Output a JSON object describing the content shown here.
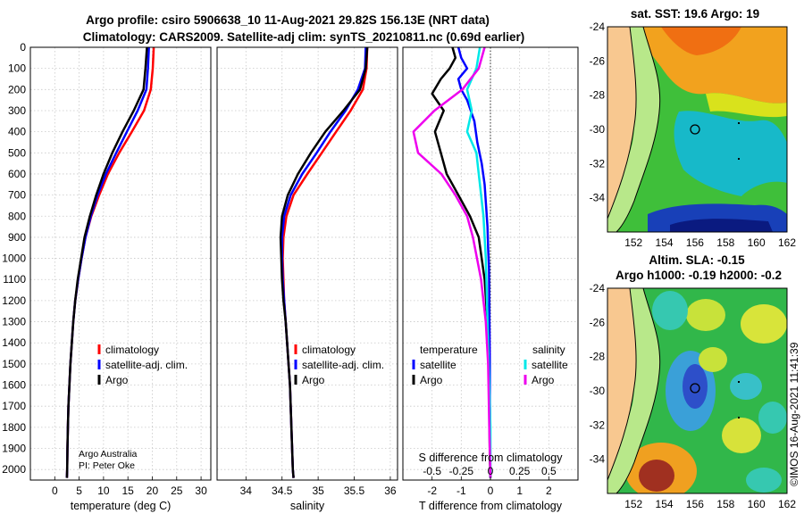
{
  "title_line1": "Argo profile: csiro 5906638_10 11-Aug-2021 29.82S 156.13E (NRT data)",
  "title_line2": "Climatology: CARS2009. Satellite-adj clim: synTS_20210811.nc (0.69d earlier)",
  "credit_line1": "Argo Australia",
  "credit_line2": "PI: Peter Oke",
  "timestamp": "©IMOS 16-Aug-2021 11:41:39",
  "colors": {
    "climatology": "#ff0000",
    "satellite": "#0000ff",
    "argo": "#000000",
    "sal_sat": "#00e8e8",
    "sal_argo": "#ee00ee"
  },
  "depth_ticks": [
    0,
    100,
    200,
    300,
    400,
    500,
    600,
    700,
    800,
    900,
    1000,
    1100,
    1200,
    1300,
    1400,
    1500,
    1600,
    1700,
    1800,
    1900,
    2000
  ],
  "legend": {
    "climatology": "climatology",
    "satellite": "satellite-adj. clim.",
    "argo": "Argo"
  },
  "diff_legend": {
    "temperature": "temperature",
    "salinity": "salinity",
    "satellite": "satellite",
    "argo": "Argo"
  },
  "maps": {
    "sst_title": "sat. SST: 19.6 Argo: 19",
    "sla_title1": "Altim. SLA: -0.15",
    "sla_title2": "Argo h1000: -0.19 h2000: -0.2",
    "lat_ticks": [
      "-24",
      "-26",
      "-28",
      "-30",
      "-32",
      "-34"
    ],
    "lon_ticks": [
      "152",
      "154",
      "156",
      "158",
      "160",
      "162"
    ]
  },
  "chart_data": [
    {
      "type": "line",
      "title": "",
      "xlabel": "temperature (deg C)",
      "ylabel": "",
      "xlim": [
        -5,
        32
      ],
      "ylim": [
        2050,
        0
      ],
      "xticks": [
        0,
        5,
        10,
        15,
        20,
        25,
        30
      ],
      "series": [
        {
          "name": "climatology",
          "x": [
            20.3,
            20.1,
            19.7,
            18.3,
            15.8,
            13.2,
            10.9,
            9.1,
            7.5,
            6.3,
            5.5,
            4.8,
            4.2,
            3.8,
            3.5,
            3.2,
            3.0,
            2.8,
            2.7,
            2.6,
            2.55,
            2.5
          ],
          "y": [
            0,
            100,
            200,
            300,
            400,
            500,
            600,
            700,
            800,
            900,
            1000,
            1100,
            1200,
            1300,
            1400,
            1500,
            1600,
            1700,
            1800,
            1900,
            2000,
            2040
          ]
        },
        {
          "name": "satellite-adj. clim.",
          "x": [
            19.3,
            19.1,
            18.8,
            17.0,
            14.8,
            12.6,
            10.5,
            8.8,
            7.4,
            6.3,
            5.5,
            4.8,
            4.2,
            3.8,
            3.5,
            3.2,
            3.0,
            2.8,
            2.7,
            2.6,
            2.55,
            2.5
          ],
          "y": [
            0,
            100,
            200,
            300,
            400,
            500,
            600,
            700,
            800,
            900,
            1000,
            1100,
            1200,
            1300,
            1400,
            1500,
            1600,
            1700,
            1800,
            1900,
            2000,
            2040
          ]
        },
        {
          "name": "Argo",
          "x": [
            18.9,
            18.6,
            18.2,
            16.2,
            13.9,
            11.8,
            10.0,
            8.5,
            7.2,
            6.1,
            5.4,
            4.7,
            4.2,
            3.8,
            3.5,
            3.2,
            3.0,
            2.8,
            2.7,
            2.6,
            2.55,
            2.5
          ],
          "y": [
            0,
            100,
            200,
            300,
            400,
            500,
            600,
            700,
            800,
            900,
            1000,
            1100,
            1200,
            1300,
            1400,
            1500,
            1600,
            1700,
            1800,
            1900,
            2000,
            2040
          ]
        }
      ]
    },
    {
      "type": "line",
      "title": "",
      "xlabel": "salinity",
      "ylabel": "",
      "xlim": [
        33.6,
        36.1
      ],
      "ylim": [
        2050,
        0
      ],
      "xticks": [
        34,
        34.5,
        35,
        35.5,
        36
      ],
      "xticklabels": [
        "34",
        "34.5",
        "35",
        "35.5",
        "36"
      ],
      "series": [
        {
          "name": "climatology",
          "x": [
            35.68,
            35.67,
            35.62,
            35.45,
            35.25,
            35.05,
            34.85,
            34.66,
            34.56,
            34.52,
            34.51,
            34.52,
            34.53,
            34.55,
            34.57,
            34.59,
            34.61,
            34.62,
            34.63,
            34.64,
            34.65,
            34.66
          ],
          "y": [
            0,
            100,
            200,
            300,
            400,
            500,
            600,
            700,
            800,
            900,
            1000,
            1100,
            1200,
            1300,
            1400,
            1500,
            1600,
            1700,
            1800,
            1900,
            2000,
            2040
          ]
        },
        {
          "name": "satellite-adj. clim.",
          "x": [
            35.66,
            35.65,
            35.55,
            35.38,
            35.17,
            34.98,
            34.78,
            34.62,
            34.53,
            34.5,
            34.5,
            34.51,
            34.53,
            34.55,
            34.57,
            34.59,
            34.61,
            34.62,
            34.63,
            34.64,
            34.65,
            34.66
          ],
          "y": [
            0,
            100,
            200,
            300,
            400,
            500,
            600,
            700,
            800,
            900,
            1000,
            1100,
            1200,
            1300,
            1400,
            1500,
            1600,
            1700,
            1800,
            1900,
            2000,
            2040
          ]
        },
        {
          "name": "Argo",
          "x": [
            35.68,
            35.66,
            35.58,
            35.35,
            35.1,
            34.9,
            34.72,
            34.58,
            34.5,
            34.48,
            34.49,
            34.5,
            34.52,
            34.55,
            34.57,
            34.59,
            34.61,
            34.62,
            34.63,
            34.64,
            34.65,
            34.66
          ],
          "y": [
            0,
            100,
            200,
            300,
            400,
            500,
            600,
            700,
            800,
            900,
            1000,
            1100,
            1200,
            1300,
            1400,
            1500,
            1600,
            1700,
            1800,
            1900,
            2000,
            2040
          ]
        }
      ]
    },
    {
      "type": "line",
      "title": "",
      "xlabel": "T difference from climatology",
      "ylabel": "",
      "xlim": [
        -3,
        3
      ],
      "ylim": [
        2050,
        0
      ],
      "xticks": [
        -2,
        -1,
        0,
        1,
        2
      ],
      "xticklabels": [
        "-2",
        "-1",
        "0",
        "1",
        "2"
      ],
      "secondary_xlabel": "S difference from climatology",
      "secondary_xticklabels": [
        "-0.5",
        "-0.25",
        "0",
        "0.25",
        "0.5"
      ],
      "series": [
        {
          "name": "temperature satellite",
          "x": [
            -1.1,
            -1.0,
            -0.8,
            -1.1,
            -1.0,
            -0.8,
            -0.55,
            -0.45,
            -0.3,
            -0.2,
            -0.15,
            -0.1,
            -0.08,
            -0.05,
            -0.04,
            -0.03,
            -0.02,
            -0.02,
            -0.01,
            -0.01,
            0
          ],
          "y": [
            0,
            50,
            100,
            150,
            200,
            250,
            350,
            450,
            550,
            650,
            750,
            850,
            950,
            1050,
            1200,
            1350,
            1500,
            1650,
            1800,
            1950,
            2040
          ]
        },
        {
          "name": "temperature Argo",
          "x": [
            -1.3,
            -1.2,
            -1.4,
            -1.7,
            -2.0,
            -1.6,
            -1.9,
            -1.7,
            -1.5,
            -1.1,
            -0.7,
            -0.4,
            -0.3,
            -0.2,
            -0.15,
            -0.1,
            -0.08,
            -0.05,
            -0.03,
            -0.02,
            0
          ],
          "y": [
            0,
            50,
            100,
            150,
            220,
            300,
            400,
            500,
            600,
            700,
            800,
            900,
            1000,
            1100,
            1200,
            1300,
            1400,
            1600,
            1800,
            1950,
            2040
          ]
        },
        {
          "name": "salinity satellite",
          "x": [
            -0.09,
            -0.12,
            -0.2,
            -0.16,
            -0.2,
            -0.12,
            -0.1,
            -0.06,
            -0.04,
            -0.03,
            -0.02,
            -0.01,
            0,
            0
          ],
          "y": [
            0,
            100,
            200,
            300,
            400,
            500,
            600,
            800,
            1000,
            1200,
            1400,
            1600,
            1800,
            2040
          ]
        },
        {
          "name": "salinity Argo",
          "x": [
            -0.05,
            -0.1,
            -0.24,
            -0.48,
            -0.66,
            -0.62,
            -0.42,
            -0.3,
            -0.2,
            -0.15,
            -0.08,
            -0.04,
            -0.02,
            -0.01,
            0
          ],
          "y": [
            0,
            100,
            200,
            300,
            400,
            500,
            600,
            700,
            800,
            900,
            1100,
            1300,
            1500,
            1800,
            2040
          ]
        }
      ]
    }
  ]
}
